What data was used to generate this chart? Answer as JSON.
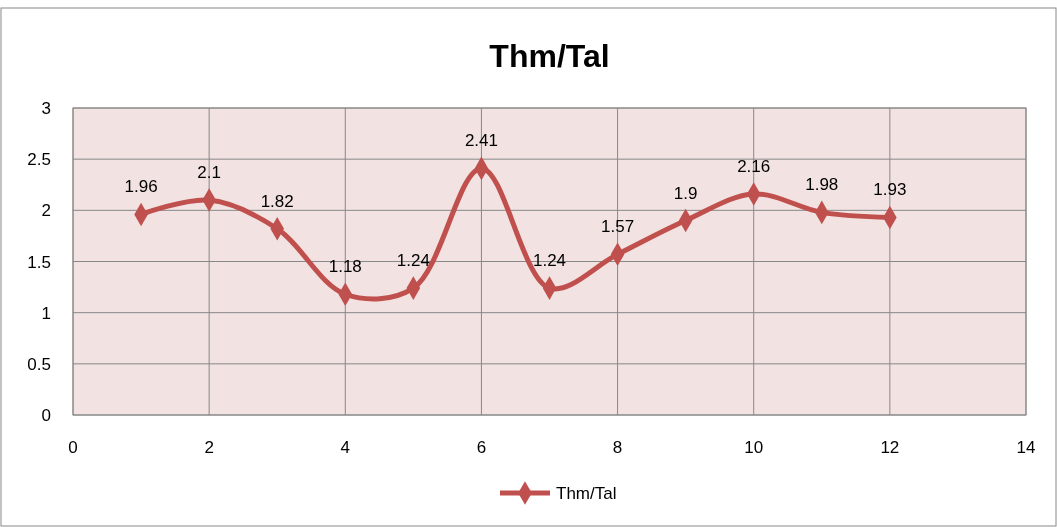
{
  "chart_data": {
    "type": "line",
    "title": "Thm/Tal",
    "x": [
      1,
      2,
      3,
      4,
      5,
      6,
      7,
      8,
      9,
      10,
      11,
      12
    ],
    "series": [
      {
        "name": "Thm/Tal",
        "color": "#c0504d",
        "values": [
          1.96,
          2.1,
          1.82,
          1.18,
          1.24,
          2.41,
          1.24,
          1.57,
          1.9,
          2.16,
          1.98,
          1.93
        ]
      }
    ],
    "xlim": [
      0,
      14
    ],
    "xticks": [
      0,
      2,
      4,
      6,
      8,
      10,
      12,
      14
    ],
    "ylim": [
      0,
      3
    ],
    "yticks": [
      0,
      0.5,
      1,
      1.5,
      2,
      2.5,
      3
    ],
    "grid": true,
    "legend": "bottom",
    "marker": "diamond",
    "line_style": "solid",
    "data_labels": true
  }
}
